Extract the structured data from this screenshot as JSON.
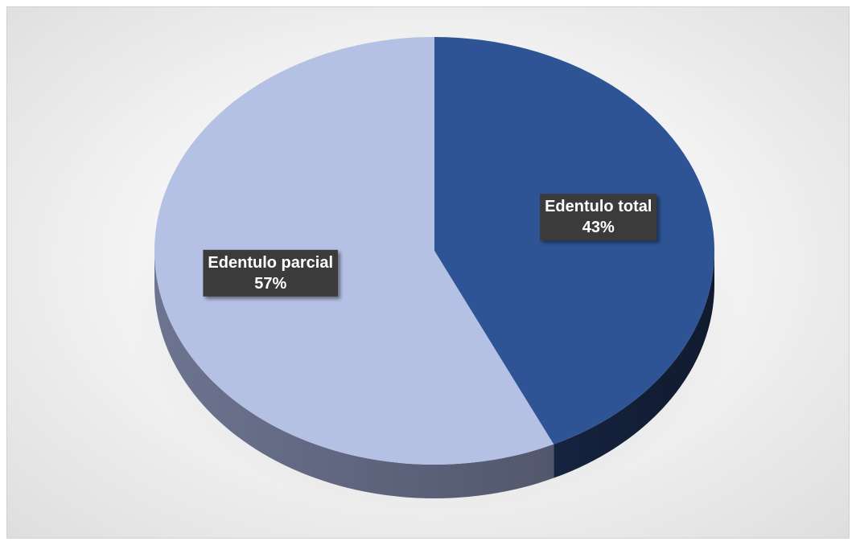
{
  "chart_data": {
    "type": "pie",
    "style": "3d",
    "title": "",
    "slices": [
      {
        "label": "Edentulo total",
        "value": 43,
        "percent_label": "43%",
        "color": "#2E5496",
        "side_color": "#16233F"
      },
      {
        "label": "Edentulo parcial",
        "value": 57,
        "percent_label": "57%",
        "color": "#B4C0E4",
        "side_color": "#6D7490"
      }
    ],
    "data_labels": "inside",
    "legend": "none",
    "label_box_color": "#3A3A3A"
  }
}
